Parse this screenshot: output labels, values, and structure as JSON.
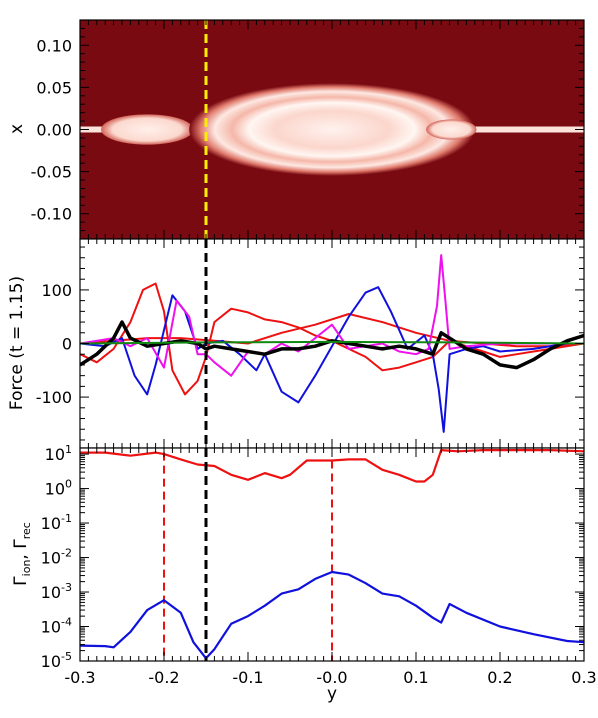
{
  "chart_data": [
    {
      "type": "heatmap",
      "xlabel": "",
      "ylabel": "x",
      "xlim": [
        -0.3,
        0.3
      ],
      "ylim": [
        -0.13,
        0.13
      ],
      "yticks": [
        "0.10",
        "0.05",
        "0.00",
        "-0.05",
        "-0.10"
      ],
      "ytick_values": [
        0.1,
        0.05,
        0.0,
        -0.05,
        -0.1
      ],
      "background_color": "#7a0a12",
      "structures": [
        {
          "name": "",
          "y_center": -0.22,
          "half_length": 0.055,
          "half_width": 0.018
        },
        {
          "name": "",
          "y_center": 0.0,
          "half_length": 0.17,
          "half_width": 0.055
        },
        {
          "name": "",
          "y_center": 0.142,
          "half_length": 0.03,
          "half_width": 0.012
        }
      ],
      "marker_line": {
        "y": -0.15,
        "color": "#ffee00",
        "style": "dashed"
      }
    },
    {
      "type": "line",
      "xlabel": "",
      "ylabel": "Force (t = 1.15)",
      "xlim": [
        -0.3,
        0.3
      ],
      "ylim": [
        -195,
        195
      ],
      "yticks": [
        "100",
        "0",
        "-100"
      ],
      "ytick_values": [
        100,
        0,
        -100
      ],
      "series": [
        {
          "color": "#ee1111",
          "x": [
            -0.3,
            -0.28,
            -0.26,
            -0.24,
            -0.225,
            -0.21,
            -0.2,
            -0.19,
            -0.175,
            -0.16,
            -0.15,
            -0.14,
            -0.12,
            -0.1,
            -0.08,
            -0.06,
            -0.04,
            -0.02,
            0.0,
            0.02,
            0.04,
            0.06,
            0.08,
            0.1,
            0.12,
            0.13,
            0.14,
            0.16,
            0.18,
            0.2,
            0.22,
            0.24,
            0.26,
            0.28,
            0.3
          ],
          "y": [
            -20,
            -35,
            -10,
            40,
            100,
            112,
            60,
            -50,
            -95,
            -70,
            -25,
            40,
            65,
            58,
            45,
            40,
            30,
            15,
            5,
            -10,
            -25,
            -50,
            -45,
            -35,
            -25,
            -10,
            5,
            -5,
            -15,
            -25,
            -20,
            -15,
            -10,
            -5,
            0
          ]
        },
        {
          "color": "#ee1111",
          "x": [
            -0.3,
            -0.26,
            -0.22,
            -0.18,
            -0.14,
            -0.1,
            -0.06,
            -0.02,
            0.02,
            0.06,
            0.1,
            0.14,
            0.18,
            0.22,
            0.26,
            0.3
          ],
          "y": [
            0,
            5,
            10,
            10,
            5,
            0,
            20,
            35,
            55,
            40,
            20,
            5,
            0,
            -5,
            -5,
            0
          ]
        },
        {
          "color": "#1111dd",
          "x": [
            -0.3,
            -0.27,
            -0.25,
            -0.235,
            -0.22,
            -0.21,
            -0.19,
            -0.175,
            -0.16,
            -0.15,
            -0.13,
            -0.11,
            -0.09,
            -0.08,
            -0.06,
            -0.04,
            -0.02,
            0.0,
            0.02,
            0.04,
            0.055,
            0.07,
            0.09,
            0.11,
            0.12,
            0.127,
            0.133,
            0.14,
            0.16,
            0.18,
            0.2,
            0.24,
            0.28,
            0.3
          ],
          "y": [
            0,
            -5,
            10,
            -60,
            -95,
            -40,
            90,
            60,
            -10,
            0,
            5,
            -20,
            -50,
            -20,
            -90,
            -110,
            -60,
            -5,
            50,
            95,
            105,
            60,
            -10,
            15,
            -20,
            -85,
            -165,
            -20,
            -10,
            -5,
            -15,
            -10,
            0,
            0
          ]
        },
        {
          "color": "#ee11ee",
          "x": [
            -0.3,
            -0.26,
            -0.24,
            -0.22,
            -0.2,
            -0.185,
            -0.17,
            -0.16,
            -0.15,
            -0.14,
            -0.12,
            -0.1,
            -0.08,
            -0.06,
            -0.04,
            -0.02,
            0.0,
            0.02,
            0.04,
            0.06,
            0.08,
            0.1,
            0.115,
            0.125,
            0.13,
            0.135,
            0.14,
            0.16,
            0.2,
            0.24,
            0.3
          ],
          "y": [
            0,
            10,
            -5,
            10,
            -45,
            80,
            50,
            -20,
            -20,
            -35,
            -60,
            -15,
            -20,
            0,
            -15,
            10,
            35,
            -10,
            -5,
            0,
            -15,
            -20,
            -10,
            70,
            165,
            80,
            -10,
            -5,
            0,
            0,
            0
          ]
        },
        {
          "color": "#000000",
          "x": [
            -0.3,
            -0.28,
            -0.26,
            -0.25,
            -0.24,
            -0.22,
            -0.2,
            -0.18,
            -0.16,
            -0.15,
            -0.14,
            -0.12,
            -0.1,
            -0.08,
            -0.06,
            -0.04,
            -0.02,
            0.0,
            0.02,
            0.04,
            0.06,
            0.08,
            0.1,
            0.12,
            0.13,
            0.14,
            0.16,
            0.18,
            0.2,
            0.22,
            0.24,
            0.26,
            0.28,
            0.3
          ],
          "y": [
            -40,
            -20,
            10,
            40,
            10,
            -5,
            0,
            5,
            0,
            -10,
            -5,
            -10,
            -15,
            -20,
            -10,
            -10,
            -5,
            5,
            0,
            -5,
            -10,
            -5,
            -10,
            -20,
            20,
            10,
            -10,
            -20,
            -40,
            -45,
            -30,
            -10,
            5,
            15
          ]
        },
        {
          "color": "#118811",
          "x": [
            -0.3,
            -0.15,
            0.0,
            0.15,
            0.3
          ],
          "y": [
            0,
            2,
            3,
            2,
            0
          ]
        }
      ],
      "marker_line": {
        "y": -0.15,
        "color": "#000000",
        "style": "dashed"
      }
    },
    {
      "type": "line",
      "xlabel": "y",
      "ylabel_main": "Γ",
      "ylabel_sub1": "ion",
      "ylabel_sep": ", Γ",
      "ylabel_sub2": "rec",
      "yscale": "log",
      "xlim": [
        -0.3,
        0.3
      ],
      "ylim": [
        1e-05,
        15
      ],
      "xticks": [
        "-0.3",
        "-0.2",
        "-0.1",
        "-0.0",
        "0.1",
        "0.2",
        "0.3"
      ],
      "xtick_values": [
        -0.3,
        -0.2,
        -0.1,
        0.0,
        0.1,
        0.2,
        0.3
      ],
      "ytick_base": "10",
      "ytick_exps": [
        "1",
        "0",
        "-1",
        "-2",
        "-3",
        "-4",
        "-5"
      ],
      "ytick_exp_values": [
        1,
        0,
        -1,
        -2,
        -3,
        -4,
        -5
      ],
      "series": [
        {
          "color": "#ee1111",
          "x": [
            -0.3,
            -0.27,
            -0.24,
            -0.21,
            -0.2,
            -0.18,
            -0.16,
            -0.14,
            -0.12,
            -0.1,
            -0.08,
            -0.06,
            -0.05,
            -0.03,
            -0.01,
            0.0,
            0.02,
            0.04,
            0.06,
            0.08,
            0.1,
            0.11,
            0.12,
            0.13,
            0.15,
            0.18,
            0.22,
            0.26,
            0.3
          ],
          "y": [
            11,
            11,
            9,
            11,
            10,
            7,
            5,
            4.5,
            2.5,
            1.8,
            2.8,
            2,
            2.5,
            6.5,
            6.5,
            6.5,
            7,
            7,
            3.5,
            2.5,
            1.6,
            1.6,
            2.5,
            13,
            12,
            13,
            13,
            13,
            12
          ]
        },
        {
          "color": "#1111dd",
          "x": [
            -0.3,
            -0.27,
            -0.26,
            -0.24,
            -0.22,
            -0.2,
            -0.18,
            -0.165,
            -0.15,
            -0.14,
            -0.12,
            -0.1,
            -0.08,
            -0.06,
            -0.04,
            -0.02,
            0.0,
            0.02,
            0.04,
            0.06,
            0.08,
            0.1,
            0.12,
            0.13,
            0.14,
            0.16,
            0.2,
            0.24,
            0.28,
            0.3
          ],
          "y": [
            2.8e-05,
            2.7e-05,
            2.5e-05,
            7e-05,
            0.0003,
            0.00058,
            0.00025,
            3.5e-05,
            1.2e-05,
            2.2e-05,
            0.00012,
            0.0002,
            0.0004,
            0.0009,
            0.0012,
            0.0024,
            0.0038,
            0.0032,
            0.0018,
            0.0009,
            0.00075,
            0.0004,
            0.00018,
            0.00013,
            0.00045,
            0.00025,
            0.0001,
            6e-05,
            3.8e-05,
            3.5e-05
          ]
        }
      ],
      "vlines": [
        {
          "y": -0.2,
          "color": "#ee1111",
          "style": "dashed"
        },
        {
          "y": 0.0,
          "color": "#ee1111",
          "style": "dashed"
        }
      ],
      "marker_line": {
        "y": -0.15,
        "color": "#000000",
        "style": "dashed"
      }
    }
  ]
}
